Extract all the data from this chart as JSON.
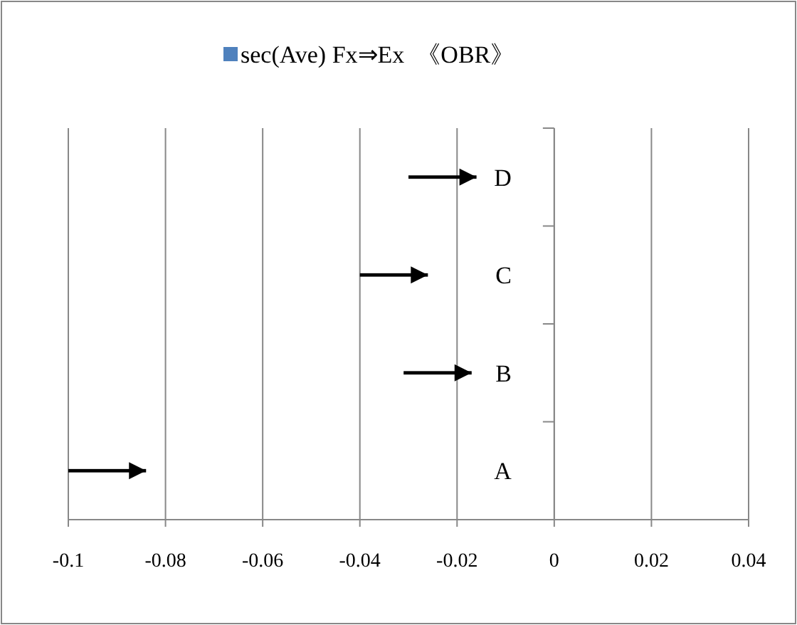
{
  "chart_data": {
    "type": "bar",
    "orientation": "horizontal",
    "categories": [
      "D",
      "C",
      "B",
      "A"
    ],
    "series": [
      {
        "name": "sec(Ave) Fx⇒Ex  《OBR》",
        "color": "#4f81bd",
        "colors": [
          "#000000",
          "#000000",
          "#000000",
          "#000000"
        ],
        "base": [
          -0.03,
          -0.04,
          -0.031,
          -0.1
        ],
        "values": [
          0.014,
          0.014,
          0.014,
          0.016
        ]
      }
    ],
    "xlim": [
      -0.1,
      0.04
    ],
    "xticks": [
      -0.1,
      -0.08,
      -0.06,
      -0.04,
      -0.02,
      0,
      0.02,
      0.04
    ],
    "grid": "x",
    "legend": "top"
  }
}
